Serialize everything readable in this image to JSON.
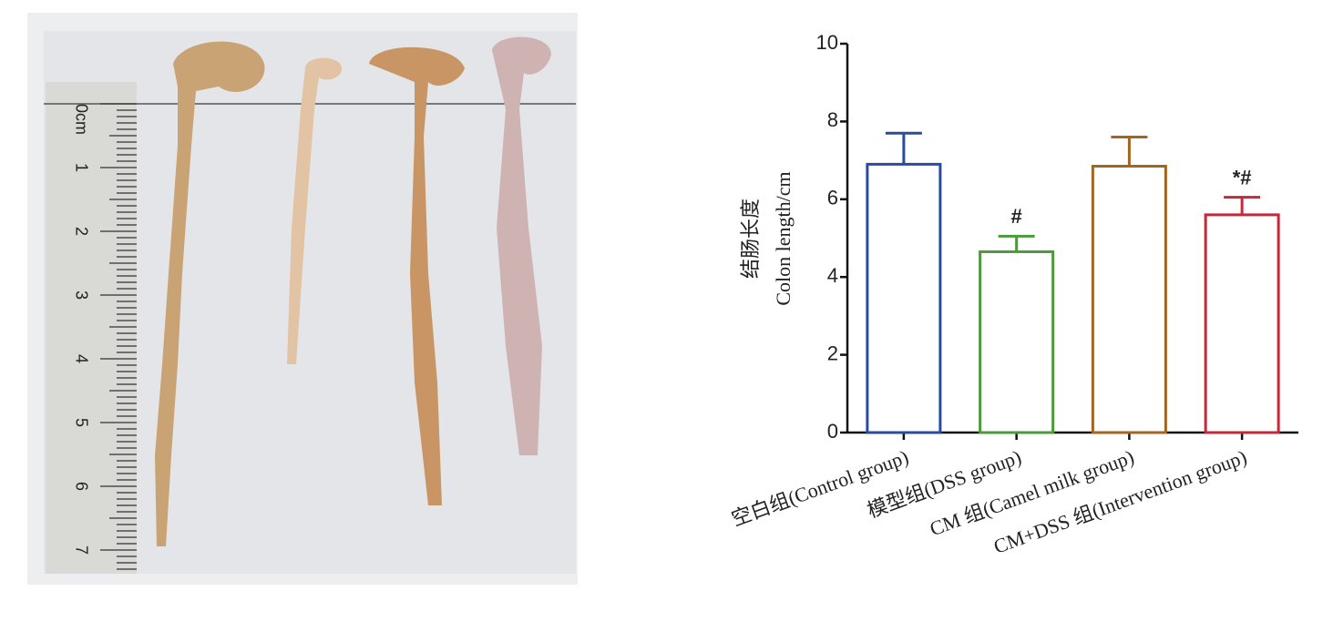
{
  "photo": {
    "ruler_labels": [
      "0cm",
      "1",
      "2",
      "3",
      "4",
      "5",
      "6",
      "7"
    ]
  },
  "chart_data": {
    "type": "bar",
    "ylabel": [
      "结肠长度",
      "Colon length/cm"
    ],
    "categories": [
      "空白组(Control group)",
      "模型组(DSS group)",
      "CM 组(Camel milk group)",
      "CM+DSS 组(Intervention group)"
    ],
    "values": [
      6.9,
      4.65,
      6.85,
      5.6
    ],
    "errors": [
      0.8,
      0.4,
      0.75,
      0.45
    ],
    "colors": [
      "#2b4c9b",
      "#4c9a3c",
      "#a3651f",
      "#c22a3c"
    ],
    "annotations": [
      null,
      "#",
      null,
      "*#"
    ],
    "ylim": [
      0,
      10
    ],
    "yticks": [
      0,
      2,
      4,
      6,
      8,
      10
    ]
  }
}
